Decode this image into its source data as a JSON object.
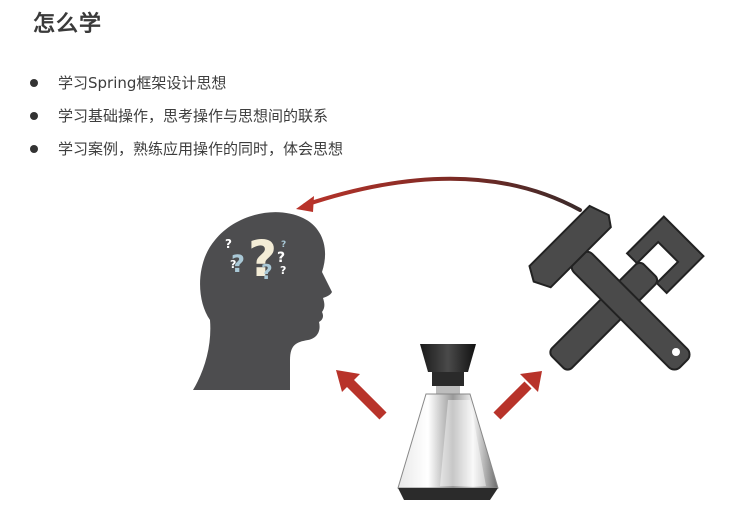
{
  "slide": {
    "title": "怎么学",
    "bullets": [
      "学习Spring框架设计思想",
      "学习基础操作，思考操作与思想间的联系",
      "学习案例，熟练应用操作的同时，体会思想"
    ]
  },
  "illustration": {
    "icons": [
      "head-with-question-marks-icon",
      "wrench-hammer-tools-icon",
      "perfume-bottle-icon"
    ],
    "colors": {
      "head": "#4d4d4f",
      "tools": "#4a4a4a",
      "arrow": "#b8332a",
      "question_cream": "#f3ecd6",
      "question_blue": "#a9c8d6",
      "question_white": "#ffffff"
    }
  }
}
